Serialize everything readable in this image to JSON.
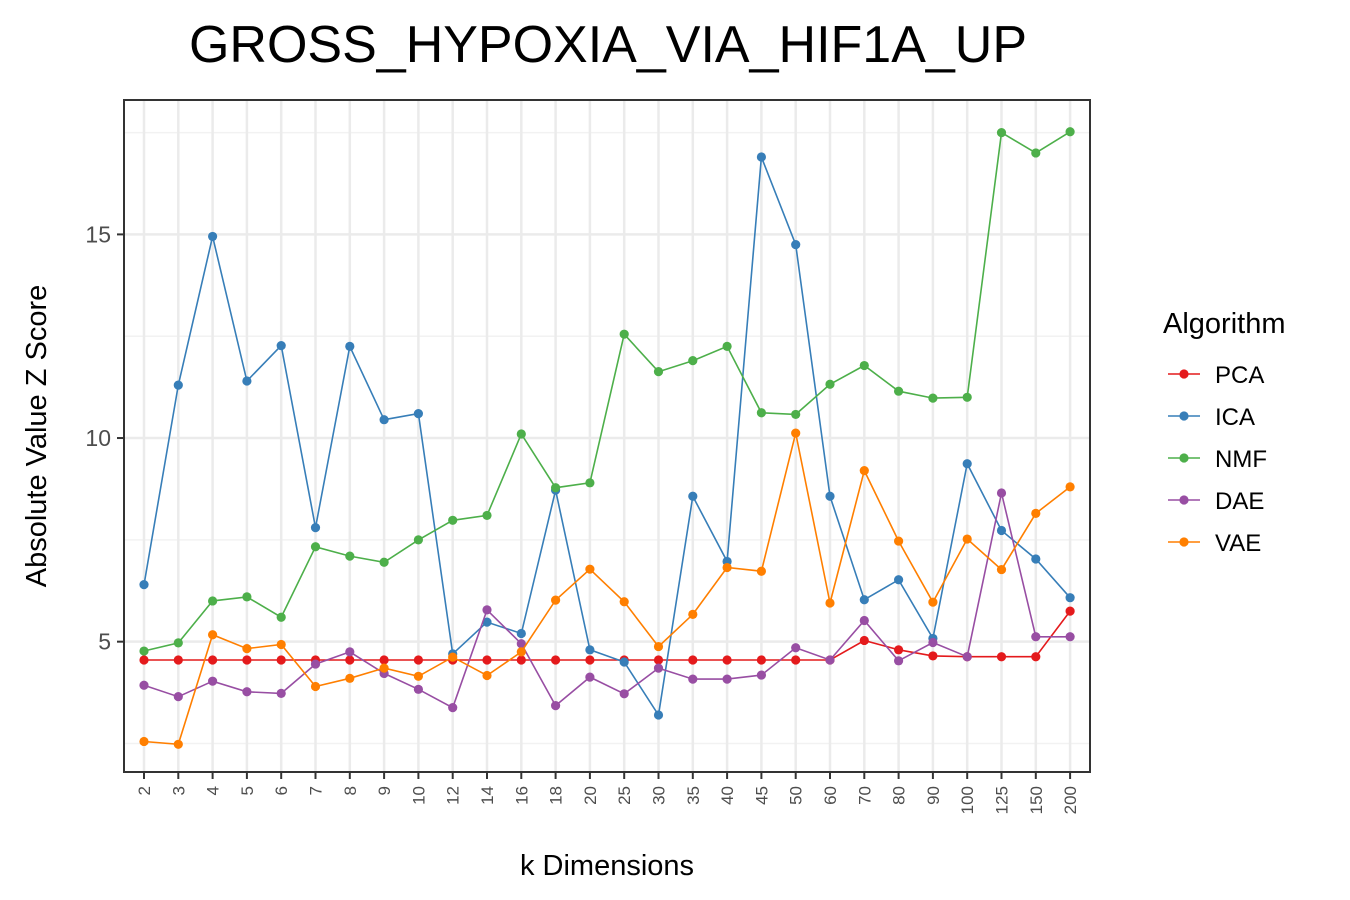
{
  "chart_data": {
    "type": "line",
    "title": "GROSS_HYPOXIA_VIA_HIF1A_UP",
    "xlabel": "k Dimensions",
    "ylabel": "Absolute Value Z Score",
    "categories": [
      "2",
      "3",
      "4",
      "5",
      "6",
      "7",
      "8",
      "9",
      "10",
      "12",
      "14",
      "16",
      "18",
      "20",
      "25",
      "30",
      "35",
      "40",
      "45",
      "50",
      "60",
      "70",
      "80",
      "90",
      "100",
      "125",
      "150",
      "200"
    ],
    "yticks": [
      5,
      10,
      15
    ],
    "ylim": [
      1.8,
      18.3
    ],
    "grid": true,
    "legend": {
      "title": "Algorithm",
      "position": "right"
    },
    "series": [
      {
        "name": "PCA",
        "color": "#e41a1c",
        "values": [
          4.55,
          4.55,
          4.55,
          4.55,
          4.55,
          4.55,
          4.55,
          4.55,
          4.55,
          4.55,
          4.55,
          4.55,
          4.55,
          4.55,
          4.55,
          4.55,
          4.55,
          4.55,
          4.55,
          4.55,
          4.55,
          5.03,
          4.8,
          4.65,
          4.63,
          4.63,
          4.63,
          5.75
        ]
      },
      {
        "name": "ICA",
        "color": "#377eb8",
        "values": [
          6.4,
          11.3,
          14.95,
          11.4,
          12.27,
          7.8,
          12.25,
          10.45,
          10.6,
          4.7,
          5.48,
          5.2,
          8.72,
          4.8,
          4.5,
          3.2,
          8.57,
          6.97,
          16.9,
          14.75,
          8.57,
          6.03,
          6.52,
          5.08,
          9.37,
          7.73,
          7.03,
          6.08
        ]
      },
      {
        "name": "NMF",
        "color": "#4daf4a",
        "values": [
          4.77,
          4.97,
          6.0,
          6.1,
          5.6,
          7.33,
          7.1,
          6.95,
          7.5,
          7.98,
          8.1,
          10.1,
          8.78,
          8.9,
          12.55,
          11.63,
          11.9,
          12.25,
          10.62,
          10.58,
          11.32,
          11.78,
          11.15,
          10.98,
          11.0,
          17.5,
          17.0,
          17.52
        ]
      },
      {
        "name": "DAE",
        "color": "#984ea3",
        "values": [
          3.93,
          3.65,
          4.03,
          3.77,
          3.73,
          4.45,
          4.75,
          4.22,
          3.83,
          3.38,
          5.78,
          4.95,
          3.43,
          4.13,
          3.72,
          4.35,
          4.08,
          4.08,
          4.18,
          4.85,
          4.55,
          5.52,
          4.53,
          4.98,
          4.63,
          8.65,
          5.12,
          5.12
        ]
      },
      {
        "name": "VAE",
        "color": "#ff7f00",
        "values": [
          2.55,
          2.48,
          5.17,
          4.83,
          4.93,
          3.9,
          4.1,
          4.35,
          4.15,
          4.62,
          4.17,
          4.75,
          6.02,
          6.78,
          5.98,
          4.88,
          5.67,
          6.82,
          6.73,
          10.12,
          5.95,
          9.2,
          7.47,
          5.97,
          7.52,
          6.77,
          8.15,
          8.8
        ]
      }
    ]
  }
}
